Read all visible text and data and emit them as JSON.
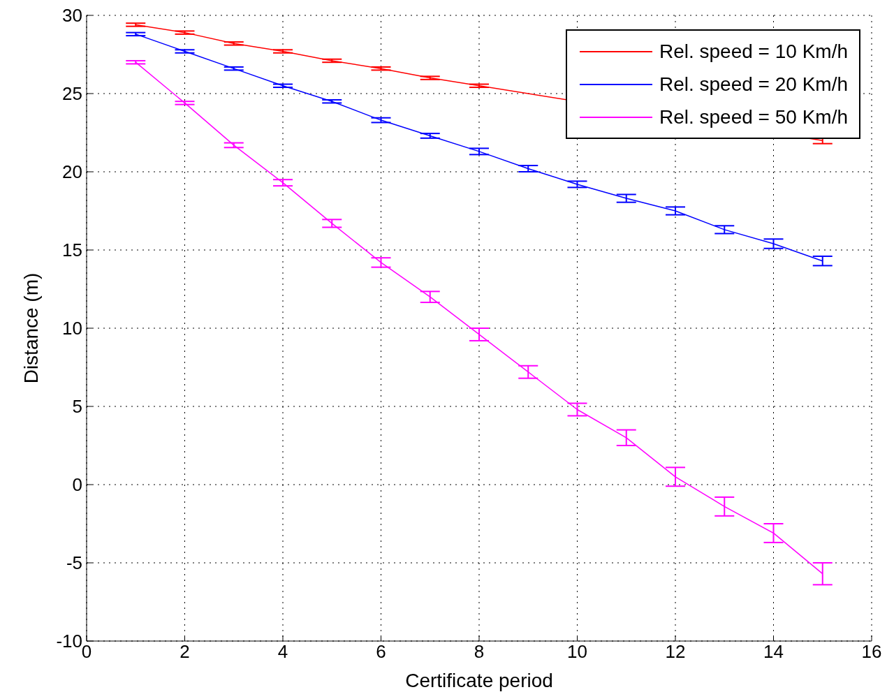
{
  "chart_data": {
    "type": "line",
    "xlabel": "Certificate period",
    "ylabel": "Distance (m)",
    "x": [
      1,
      2,
      3,
      4,
      5,
      6,
      7,
      8,
      9,
      10,
      11,
      12,
      13,
      14,
      15
    ],
    "series": [
      {
        "name": "Rel. speed = 10 Km/h",
        "color": "#ff0000",
        "values": [
          29.4,
          28.9,
          28.2,
          27.7,
          27.1,
          26.6,
          26.0,
          25.5,
          null,
          null,
          null,
          null,
          null,
          null,
          22.0
        ],
        "errors": [
          0.1,
          0.1,
          0.1,
          0.1,
          0.1,
          0.1,
          0.1,
          0.1,
          null,
          null,
          null,
          null,
          null,
          null,
          0.2
        ]
      },
      {
        "name": "Rel. speed = 20 Km/h",
        "color": "#0000ff",
        "values": [
          28.8,
          27.7,
          26.6,
          25.5,
          24.5,
          23.3,
          22.3,
          21.3,
          20.2,
          19.2,
          18.3,
          17.5,
          16.3,
          15.4,
          14.3
        ],
        "errors": [
          0.1,
          0.1,
          0.1,
          0.1,
          0.1,
          0.15,
          0.15,
          0.2,
          0.2,
          0.2,
          0.25,
          0.25,
          0.25,
          0.3,
          0.3
        ]
      },
      {
        "name": "Rel. speed = 50 Km/h",
        "color": "#ff00ff",
        "values": [
          27.0,
          24.4,
          21.7,
          19.3,
          16.7,
          14.2,
          12.0,
          9.6,
          7.2,
          4.8,
          3.0,
          0.5,
          -1.4,
          -3.1,
          -5.7
        ],
        "errors": [
          0.1,
          0.1,
          0.15,
          0.2,
          0.25,
          0.3,
          0.35,
          0.4,
          0.4,
          0.4,
          0.5,
          0.6,
          0.6,
          0.6,
          0.7
        ]
      }
    ],
    "xlim": [
      0,
      16
    ],
    "xticks": [
      0,
      2,
      4,
      6,
      8,
      10,
      12,
      14,
      16
    ],
    "ylim": [
      -10,
      30
    ],
    "yticks": [
      -10,
      -5,
      0,
      5,
      10,
      15,
      20,
      25,
      30
    ],
    "grid": true,
    "legend": "top right",
    "marker": "none",
    "line_style": "solid"
  }
}
